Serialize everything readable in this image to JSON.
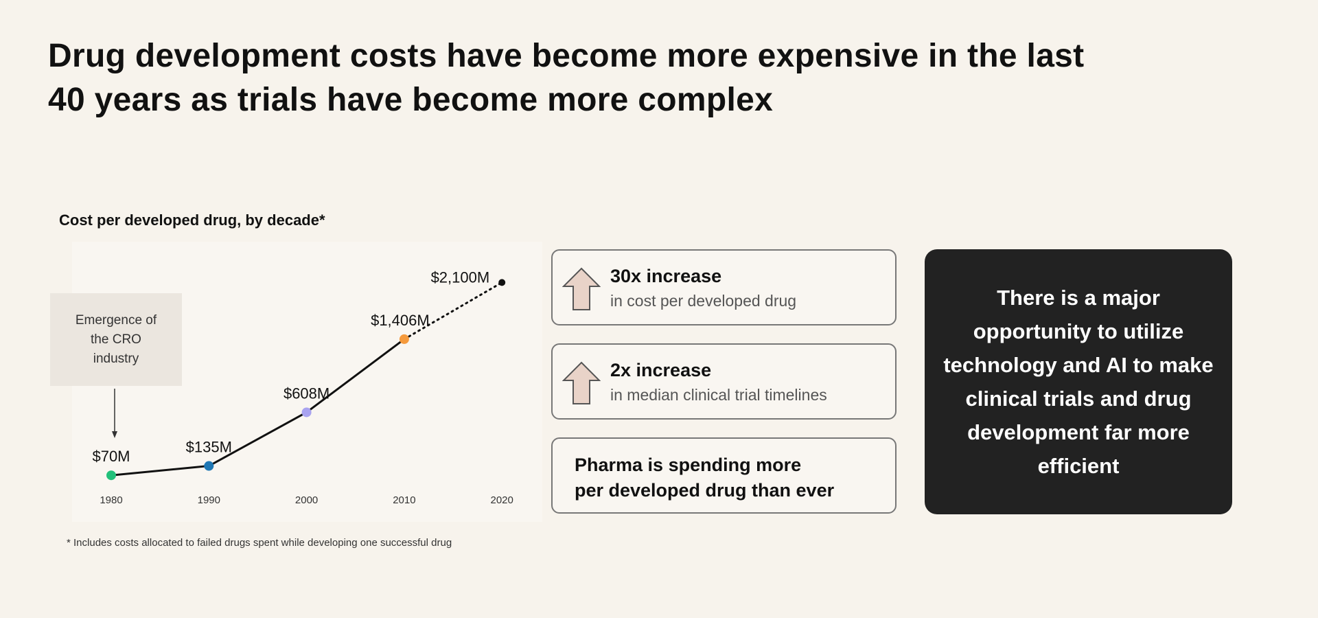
{
  "title_line1": "Drug development costs have become more expensive in the last",
  "title_line2": "40 years as trials have become more complex",
  "chart_data": {
    "type": "line",
    "title": "Cost per developed drug, by decade*",
    "categories": [
      "1980",
      "1990",
      "2000",
      "2010",
      "2020"
    ],
    "values": [
      70,
      135,
      608,
      1406,
      2100
    ],
    "data_labels": [
      "$70M",
      "$135M",
      "$608M",
      "$1,406M",
      "$2,100M"
    ],
    "point_colors": [
      "#22c07a",
      "#1f77b4",
      "#a9a3f0",
      "#f59a3c",
      "#111111"
    ],
    "projected_segment": "2010-2020 dotted",
    "ylim": [
      0,
      2200
    ],
    "grid": false,
    "annotation": "Emergence of the CRO industry",
    "annotation_target": "1980"
  },
  "annotation_lines": [
    "Emergence of",
    "the CRO",
    "industry"
  ],
  "footnote": "* Includes costs allocated to failed drugs spent while developing one successful drug",
  "stats": [
    {
      "headline": "30x increase",
      "sub": "in cost per developed drug",
      "icon": "arrow-up-icon"
    },
    {
      "headline": "2x increase",
      "sub": "in median clinical trial timelines",
      "icon": "arrow-up-icon"
    }
  ],
  "summary_line1": "Pharma is spending more",
  "summary_line2": "per developed drug than ever",
  "callout": "There is a major opportunity to utilize technology and AI to make clinical trials and drug development far more efficient",
  "colors": {
    "background": "#f7f3ec",
    "callout_bg": "#222222",
    "arrow_fill": "#e9d3c8"
  }
}
